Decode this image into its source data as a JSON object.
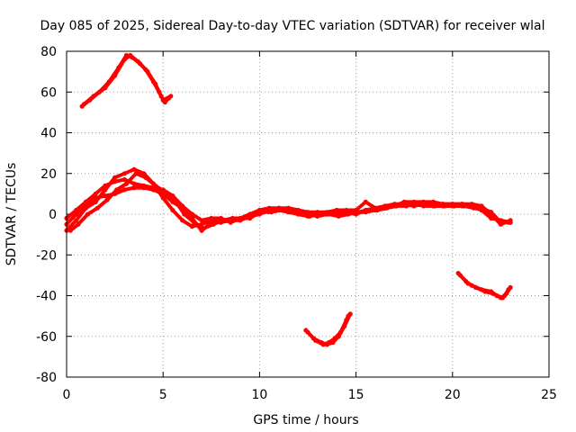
{
  "chart_data": {
    "type": "scatter",
    "title": "Day 085 of 2025, Sidereal Day-to-day VTEC variation (SDTVAR) for receiver wlal",
    "xlabel": "GPS time / hours",
    "ylabel": "SDTVAR / TECUs",
    "xlim": [
      0,
      25
    ],
    "ylim": [
      -80,
      80
    ],
    "xticks": [
      0,
      5,
      10,
      15,
      20,
      25
    ],
    "yticks": [
      -80,
      -60,
      -40,
      -20,
      0,
      20,
      40,
      60,
      80
    ],
    "grid": true,
    "color": "#ff0000",
    "series": [
      {
        "name": "upper-arc",
        "points": [
          [
            0.8,
            53
          ],
          [
            1.2,
            56
          ],
          [
            1.7,
            60
          ],
          [
            2.2,
            65
          ],
          [
            2.7,
            72
          ],
          [
            3.1,
            78
          ],
          [
            3.4,
            77
          ],
          [
            3.8,
            74
          ],
          [
            4.2,
            70
          ],
          [
            4.6,
            64
          ],
          [
            4.9,
            58
          ],
          [
            5.1,
            55
          ],
          [
            5.3,
            57
          ]
        ]
      },
      {
        "name": "upper-arc-b",
        "points": [
          [
            0.9,
            54
          ],
          [
            1.4,
            58
          ],
          [
            2.0,
            62
          ],
          [
            2.5,
            68
          ],
          [
            3.0,
            76
          ],
          [
            3.3,
            78
          ],
          [
            3.7,
            75
          ],
          [
            4.1,
            71
          ],
          [
            4.5,
            65
          ],
          [
            4.8,
            60
          ],
          [
            5.0,
            56
          ],
          [
            5.4,
            58
          ]
        ]
      },
      {
        "name": "main-a",
        "points": [
          [
            0,
            -8
          ],
          [
            0.5,
            -3
          ],
          [
            1.0,
            3
          ],
          [
            1.5,
            6
          ],
          [
            2.0,
            12
          ],
          [
            2.5,
            18
          ],
          [
            3.0,
            20
          ],
          [
            3.5,
            22
          ],
          [
            4.0,
            20
          ],
          [
            4.5,
            15
          ],
          [
            5.0,
            8
          ],
          [
            5.5,
            2
          ],
          [
            6.0,
            -3
          ],
          [
            6.5,
            -6
          ],
          [
            7.0,
            -5
          ],
          [
            7.5,
            -3
          ],
          [
            8.0,
            -3
          ],
          [
            8.5,
            -3
          ],
          [
            9.0,
            -2
          ],
          [
            9.5,
            -2
          ],
          [
            10.0,
            1
          ],
          [
            10.5,
            2
          ],
          [
            11.0,
            2
          ],
          [
            11.5,
            1
          ],
          [
            12.0,
            0
          ],
          [
            12.5,
            -1
          ],
          [
            13.0,
            0
          ],
          [
            13.5,
            0
          ],
          [
            14.0,
            0
          ],
          [
            14.5,
            0
          ],
          [
            15.0,
            1
          ],
          [
            15.5,
            1
          ],
          [
            16.0,
            2
          ],
          [
            16.5,
            3
          ],
          [
            17.0,
            4
          ],
          [
            17.5,
            5
          ],
          [
            18.0,
            5
          ],
          [
            18.5,
            4
          ],
          [
            19.0,
            4
          ],
          [
            19.5,
            4
          ],
          [
            20.0,
            4
          ],
          [
            20.5,
            4
          ],
          [
            21.0,
            4
          ],
          [
            21.5,
            3
          ],
          [
            22.0,
            1
          ],
          [
            22.5,
            -4
          ],
          [
            23.0,
            -4
          ]
        ]
      },
      {
        "name": "main-b",
        "points": [
          [
            0,
            -5
          ],
          [
            0.5,
            0
          ],
          [
            1.0,
            5
          ],
          [
            1.5,
            8
          ],
          [
            2.0,
            9
          ],
          [
            2.5,
            10
          ],
          [
            3.0,
            12
          ],
          [
            3.5,
            13
          ],
          [
            4.0,
            13
          ],
          [
            4.5,
            12
          ],
          [
            5.0,
            10
          ],
          [
            5.5,
            6
          ],
          [
            6.0,
            3
          ],
          [
            6.5,
            -2
          ],
          [
            7.0,
            -8
          ],
          [
            7.5,
            -4
          ],
          [
            8.0,
            -4
          ],
          [
            8.5,
            -3
          ],
          [
            9.0,
            -3
          ],
          [
            9.5,
            -1
          ],
          [
            10.0,
            0
          ],
          [
            10.5,
            2
          ],
          [
            11.0,
            3
          ],
          [
            11.5,
            2
          ],
          [
            12.0,
            1
          ],
          [
            12.5,
            0
          ],
          [
            13.0,
            -1
          ],
          [
            13.5,
            0
          ],
          [
            14.0,
            1
          ],
          [
            14.5,
            1
          ],
          [
            15.0,
            0
          ],
          [
            15.5,
            2
          ],
          [
            16.0,
            3
          ],
          [
            16.5,
            4
          ],
          [
            17.0,
            5
          ],
          [
            17.5,
            5
          ],
          [
            18.0,
            4
          ],
          [
            18.5,
            5
          ],
          [
            19.0,
            5
          ],
          [
            19.5,
            5
          ],
          [
            20.0,
            5
          ],
          [
            20.5,
            5
          ],
          [
            21.0,
            5
          ],
          [
            21.5,
            4
          ],
          [
            22.0,
            0
          ],
          [
            22.5,
            -5
          ],
          [
            23.0,
            -3
          ]
        ]
      },
      {
        "name": "main-c",
        "points": [
          [
            0,
            -2
          ],
          [
            0.5,
            2
          ],
          [
            1.0,
            6
          ],
          [
            1.5,
            10
          ],
          [
            2.0,
            14
          ],
          [
            2.5,
            16
          ],
          [
            3.0,
            17
          ],
          [
            3.5,
            15
          ],
          [
            4.0,
            14
          ],
          [
            4.5,
            13
          ],
          [
            5.0,
            12
          ],
          [
            5.5,
            9
          ],
          [
            6.0,
            4
          ],
          [
            6.5,
            0
          ],
          [
            7.0,
            -3
          ],
          [
            7.5,
            -2
          ],
          [
            8.0,
            -2
          ],
          [
            8.5,
            -4
          ],
          [
            9.0,
            -2
          ],
          [
            9.5,
            0
          ],
          [
            10.0,
            2
          ],
          [
            10.5,
            3
          ],
          [
            11.0,
            3
          ],
          [
            11.5,
            3
          ],
          [
            12.0,
            2
          ],
          [
            12.5,
            1
          ],
          [
            13.0,
            1
          ],
          [
            13.5,
            1
          ],
          [
            14.0,
            2
          ],
          [
            14.5,
            2
          ],
          [
            15.0,
            2
          ],
          [
            15.5,
            6
          ],
          [
            16.0,
            3
          ],
          [
            16.5,
            3
          ],
          [
            17.0,
            4
          ],
          [
            17.5,
            6
          ],
          [
            18.0,
            6
          ],
          [
            18.5,
            6
          ],
          [
            19.0,
            6
          ],
          [
            19.5,
            5
          ],
          [
            20.0,
            5
          ],
          [
            20.5,
            5
          ],
          [
            21.0,
            4
          ],
          [
            21.5,
            2
          ],
          [
            22.0,
            -2
          ],
          [
            22.5,
            -3
          ],
          [
            23.0,
            -4
          ]
        ]
      },
      {
        "name": "main-d",
        "points": [
          [
            0.2,
            -8
          ],
          [
            0.6,
            -5
          ],
          [
            1.1,
            0
          ],
          [
            1.6,
            3
          ],
          [
            2.1,
            7
          ],
          [
            2.6,
            12
          ],
          [
            3.1,
            15
          ],
          [
            3.6,
            20
          ],
          [
            4.1,
            18
          ],
          [
            4.6,
            14
          ],
          [
            5.1,
            11
          ],
          [
            5.6,
            7
          ],
          [
            6.1,
            0
          ],
          [
            6.6,
            -4
          ],
          [
            7.1,
            -7
          ],
          [
            7.6,
            -5
          ],
          [
            8.1,
            -3
          ],
          [
            8.6,
            -2
          ],
          [
            9.1,
            -2
          ],
          [
            9.6,
            -1
          ],
          [
            10.1,
            1
          ],
          [
            10.6,
            1
          ],
          [
            11.1,
            2
          ],
          [
            11.6,
            1
          ],
          [
            12.1,
            0
          ],
          [
            12.6,
            -1
          ],
          [
            13.1,
            0
          ],
          [
            13.6,
            0
          ],
          [
            14.1,
            -1
          ],
          [
            14.6,
            0
          ],
          [
            15.1,
            1
          ],
          [
            15.6,
            2
          ],
          [
            16.1,
            2
          ],
          [
            16.6,
            3
          ],
          [
            17.1,
            4
          ],
          [
            17.6,
            4
          ],
          [
            18.1,
            5
          ],
          [
            18.6,
            5
          ],
          [
            19.1,
            4
          ],
          [
            19.6,
            4
          ],
          [
            20.1,
            4
          ],
          [
            20.6,
            4
          ],
          [
            21.1,
            3
          ],
          [
            21.6,
            2
          ],
          [
            22.1,
            -1
          ],
          [
            22.6,
            -4
          ],
          [
            22.9,
            -4
          ]
        ]
      },
      {
        "name": "lower-arc",
        "points": [
          [
            12.4,
            -57
          ],
          [
            12.8,
            -61
          ],
          [
            13.2,
            -63
          ],
          [
            13.5,
            -64
          ],
          [
            13.8,
            -63
          ],
          [
            14.1,
            -60
          ],
          [
            14.4,
            -55
          ],
          [
            14.7,
            -49
          ]
        ]
      },
      {
        "name": "lower-arc-b",
        "points": [
          [
            12.5,
            -58
          ],
          [
            12.9,
            -62
          ],
          [
            13.3,
            -64
          ],
          [
            13.6,
            -63
          ],
          [
            13.9,
            -61
          ],
          [
            14.2,
            -58
          ],
          [
            14.5,
            -52
          ],
          [
            14.6,
            -50
          ]
        ]
      },
      {
        "name": "right-arc",
        "points": [
          [
            20.3,
            -29
          ],
          [
            20.7,
            -33
          ],
          [
            21.0,
            -35
          ],
          [
            21.5,
            -37
          ],
          [
            22.0,
            -38
          ],
          [
            22.3,
            -40
          ],
          [
            22.6,
            -41
          ],
          [
            22.8,
            -39
          ],
          [
            23.0,
            -36
          ]
        ]
      },
      {
        "name": "right-arc-b",
        "points": [
          [
            20.4,
            -30
          ],
          [
            20.8,
            -34
          ],
          [
            21.2,
            -36
          ],
          [
            21.7,
            -38
          ],
          [
            22.1,
            -39
          ],
          [
            22.5,
            -41
          ],
          [
            22.7,
            -40
          ],
          [
            22.9,
            -37
          ]
        ]
      }
    ]
  }
}
